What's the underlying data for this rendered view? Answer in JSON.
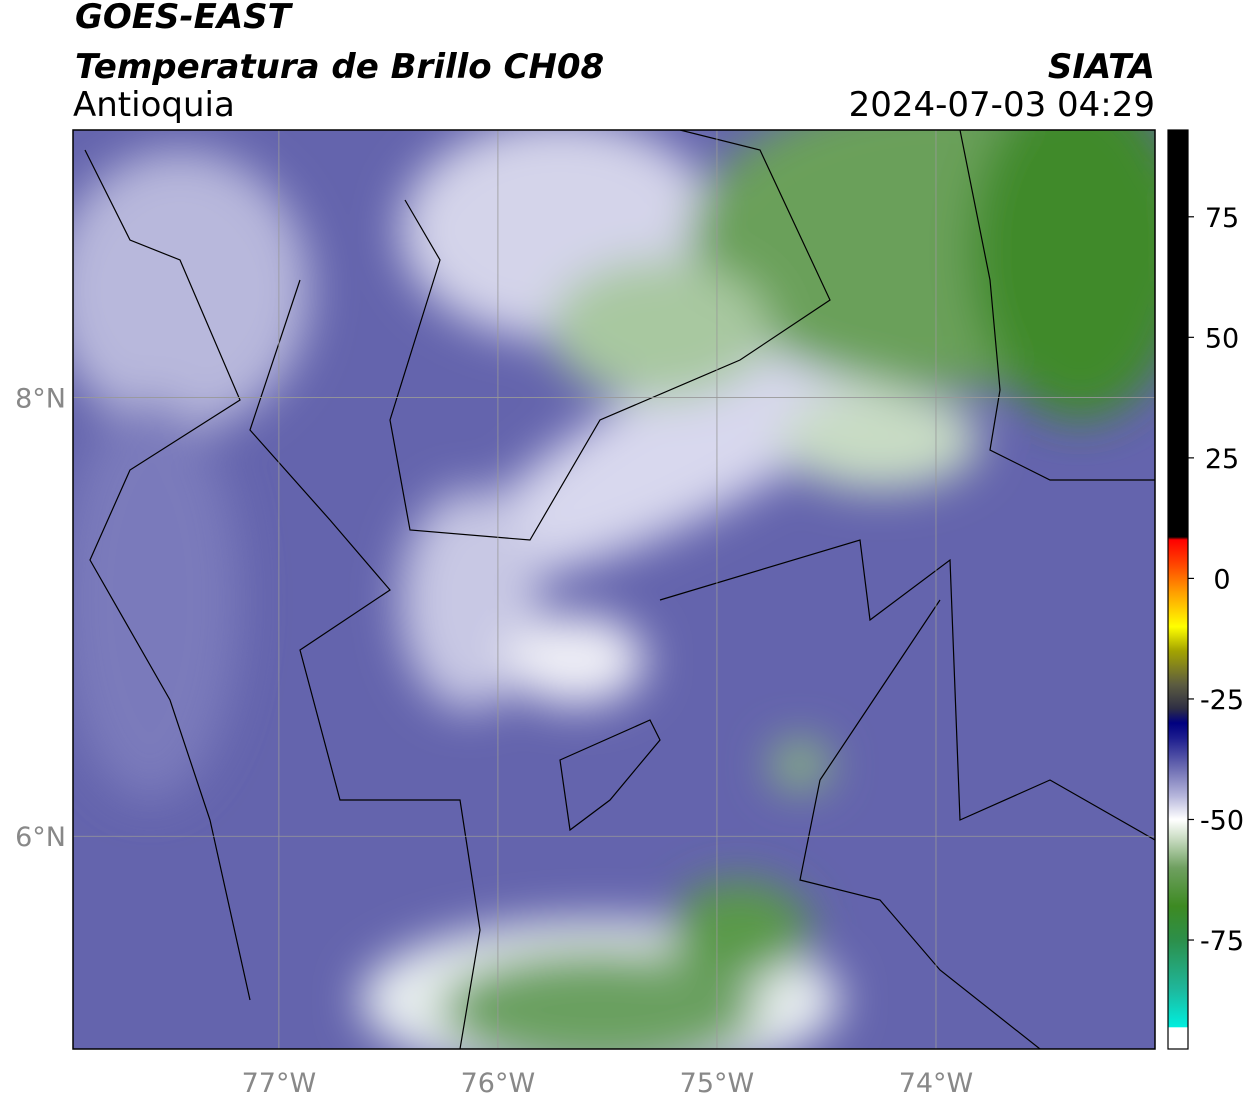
{
  "header": {
    "title": "GOES-EAST",
    "subtitle": "Temperatura de Brillo CH08",
    "region": "Antioquia",
    "source": "SIATA",
    "timestamp": "2024-07-03 04:29"
  },
  "map": {
    "xlim": [
      -77.94,
      -73.0
    ],
    "ylim": [
      5.03,
      9.22
    ],
    "xticks": [
      {
        "value": -77,
        "label": "77°W"
      },
      {
        "value": -76,
        "label": "76°W"
      },
      {
        "value": -75,
        "label": "75°W"
      },
      {
        "value": -74,
        "label": "74°W"
      }
    ],
    "yticks": [
      {
        "value": 6,
        "label": "6°N"
      },
      {
        "value": 8,
        "label": "8°N"
      }
    ],
    "grid": true
  },
  "colorbar": {
    "lim": [
      -97.6,
      93
    ],
    "ticks": [
      -75,
      -50,
      -25,
      0,
      25,
      50,
      75
    ],
    "colorscale": [
      [
        -97.6,
        "#ffffff"
      ],
      [
        -93.2,
        "#ffffff"
      ],
      [
        -93,
        "#00eede"
      ],
      [
        -85,
        "#1fb69a"
      ],
      [
        -75,
        "#2c8f4a"
      ],
      [
        -68,
        "#3d8a22"
      ],
      [
        -60,
        "#6fa060"
      ],
      [
        -54,
        "#c9dcc2"
      ],
      [
        -50,
        "#ffffff"
      ],
      [
        -45,
        "#b4b4da"
      ],
      [
        -39,
        "#6868b0"
      ],
      [
        -33,
        "#1c1c8e"
      ],
      [
        -30,
        "#000080"
      ],
      [
        -27,
        "#2e2e44"
      ],
      [
        -22,
        "#5c5c40"
      ],
      [
        -15,
        "#a4a400"
      ],
      [
        -10,
        "#ffff00"
      ],
      [
        -3,
        "#ffa000"
      ],
      [
        3,
        "#ff4400"
      ],
      [
        8,
        "#ff0000"
      ],
      [
        8.6,
        "#000000"
      ],
      [
        93,
        "#000000"
      ]
    ]
  }
}
